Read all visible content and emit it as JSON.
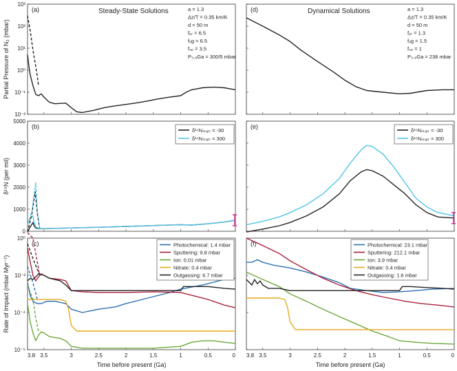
{
  "figure": {
    "xlabel": "Time before present (Ga)",
    "x_ticks": [
      "3.8",
      "3.5",
      "3",
      "2.5",
      "2",
      "1.5",
      "1",
      "0.5",
      "0"
    ],
    "xlim": [
      3.8,
      0
    ]
  },
  "colors": {
    "black": "#222222",
    "blue": "#2a6fb0",
    "red": "#a8213a",
    "green": "#6aa83a",
    "yellow": "#e8a81e",
    "cyan": "#4fc3e6",
    "magenta": "#d4229a"
  },
  "panels": {
    "a": {
      "label": "(a)",
      "title": "Steady-State Solutions",
      "ylabel": "Partial Pressure of N₂ (mbar)",
      "y_ticks": [
        "10³",
        "10²",
        "10¹",
        "10⁰",
        "10⁻¹",
        "10⁻²"
      ],
      "params": [
        "a = 1.3",
        "Δz/T = 0.35 km/K",
        "d    = 50 m",
        "fₚᵣ = 6.5",
        "fₒg = 6.5",
        "fₛₚ = 3.5",
        "P₃.₈Ga = 300/5 mbar"
      ]
    },
    "b": {
      "label": "(b)",
      "ylabel": "δ¹⁵N (per mil)",
      "y_ticks": [
        "5000",
        "4000",
        "3000",
        "2000",
        "1000",
        "0"
      ],
      "legend": [
        "δ¹⁵Nₛₜₐᵣₜ = -30",
        "δ¹⁵Nₛₜₐᵣₜ = 300"
      ]
    },
    "c": {
      "label": "(c)",
      "ylabel": "Rate of Impact (mbar Myr⁻¹)",
      "y_ticks": [
        "10⁰",
        "10⁻²",
        "10⁻⁴",
        "10⁻⁶"
      ],
      "legend": [
        "Photochemical: 1.4 mbar",
        "Sputtering: 9.8 mbar",
        "Ion: 0.01 mbar",
        "Nitrate: 0.4 mbar",
        "Outgassing: 6.7 mbar"
      ]
    },
    "d": {
      "label": "(d)",
      "title": "Dynamical Solutions",
      "params": [
        "a = 1.3",
        "Δz/T = 0.35 km/K",
        "d    = 50 m",
        "fₚᵣ = 1.3",
        "fₒg = 1.5",
        "fₛₚ = 1",
        "P₃.₈Ga = 238 mbar"
      ]
    },
    "e": {
      "label": "(e)",
      "legend": [
        "δ¹⁵Nₛₜₐᵣₜ = -30",
        "δ¹⁵Nₛₜₐᵣₜ = 300"
      ]
    },
    "f": {
      "label": "(f)",
      "legend": [
        "Photochemical: 23.1 mbar",
        "Sputtering: 212.1 mbar",
        "Ion: 3.9 mbar",
        "Nitrate: 0.4 mbar",
        "Outgassing: 1.6 mbar"
      ]
    }
  },
  "chart_data": [
    {
      "id": "a",
      "type": "line",
      "y_scale": "log",
      "ylim": [
        0.01,
        1000
      ],
      "series": [
        {
          "style": "dashed",
          "color": "black",
          "x": [
            3.8,
            3.75,
            3.7,
            3.65,
            3.62,
            3.6
          ],
          "y": [
            300,
            60,
            8,
            1.5,
            0.5,
            0.2
          ]
        },
        {
          "style": "solid",
          "color": "black",
          "x": [
            3.8,
            3.77,
            3.75,
            3.7,
            3.65,
            3.6,
            3.55,
            3.5,
            3.4,
            3.3,
            3.1,
            3.0,
            2.9,
            2.8,
            2.6,
            2.4,
            2.2,
            2.0,
            1.8,
            1.6,
            1.4,
            1.2,
            1.0,
            0.9,
            0.8,
            0.6,
            0.4,
            0.2,
            0.0
          ],
          "y": [
            5,
            1.2,
            0.6,
            0.2,
            0.08,
            0.07,
            0.085,
            0.06,
            0.035,
            0.03,
            0.032,
            0.02,
            0.013,
            0.012,
            0.015,
            0.02,
            0.024,
            0.028,
            0.033,
            0.04,
            0.05,
            0.06,
            0.07,
            0.1,
            0.13,
            0.16,
            0.17,
            0.16,
            0.13
          ]
        }
      ]
    },
    {
      "id": "b",
      "type": "line",
      "ylim": [
        0,
        5000
      ],
      "series": [
        {
          "name": "δ¹⁵Nₛₜₐᵣₜ = -30",
          "style": "solid",
          "color": "black",
          "x": [
            3.8,
            3.75,
            3.7,
            3.68,
            3.65,
            3.6,
            3.5,
            3.3,
            3.0,
            2.5,
            2.0,
            1.5,
            1.0,
            0.8,
            0.5,
            0.2,
            0.0
          ],
          "y": [
            -30,
            200,
            400,
            250,
            150,
            120,
            120,
            130,
            150,
            180,
            220,
            260,
            300,
            280,
            340,
            420,
            500
          ]
        },
        {
          "name": "δ¹⁵Nₛₜₐᵣₜ = 300",
          "style": "solid",
          "color": "cyan",
          "x": [
            3.8,
            3.75,
            3.7,
            3.68,
            3.65,
            3.6,
            3.5,
            3.3,
            3.0,
            2.5,
            2.0,
            1.5,
            1.0,
            0.8,
            0.5,
            0.2,
            0.0
          ],
          "y": [
            300,
            600,
            700,
            400,
            200,
            130,
            120,
            130,
            150,
            180,
            220,
            260,
            300,
            280,
            340,
            420,
            500
          ]
        },
        {
          "style": "dashed",
          "color": "black",
          "x": [
            3.8,
            3.72,
            3.66,
            3.62,
            3.58
          ],
          "y": [
            -30,
            800,
            1800,
            800,
            150
          ]
        },
        {
          "style": "dashed",
          "color": "cyan",
          "x": [
            3.8,
            3.72,
            3.65,
            3.62,
            3.58
          ],
          "y": [
            300,
            900,
            2200,
            900,
            150
          ]
        }
      ],
      "error_bar": {
        "x": 0.0,
        "y": 500,
        "low": 250,
        "high": 750,
        "color": "magenta"
      }
    },
    {
      "id": "c",
      "type": "line",
      "y_scale": "log",
      "ylim": [
        1e-06,
        1
      ],
      "series": [
        {
          "name": "Photochemical: 1.4 mbar",
          "color": "blue",
          "style": "solid",
          "x": [
            3.8,
            3.75,
            3.7,
            3.62,
            3.55,
            3.45,
            3.3,
            3.1,
            3.0,
            2.8,
            2.5,
            2.2,
            2.0,
            1.6,
            1.2,
            1.0,
            0.6,
            0.2,
            0.0
          ],
          "y": [
            0.004,
            0.0008,
            0.0004,
            0.0003,
            0.0003,
            0.0004,
            0.0004,
            0.0003,
            0.00015,
            0.0001,
            0.00015,
            0.0002,
            0.0003,
            0.0006,
            0.0012,
            0.0018,
            0.003,
            0.006,
            0.007
          ]
        },
        {
          "name": "Sputtering: 9.8 mbar",
          "color": "red",
          "style": "solid",
          "x": [
            3.8,
            3.75,
            3.7,
            3.65,
            3.6,
            3.55,
            3.5,
            3.4,
            3.2,
            3.1,
            3.0,
            2.8,
            2.5,
            2.0,
            1.5,
            1.0,
            0.5,
            0.2,
            0.0
          ],
          "y": [
            0.3,
            0.05,
            0.01,
            0.005,
            0.008,
            0.012,
            0.01,
            0.007,
            0.006,
            0.005,
            0.0015,
            0.0013,
            0.0012,
            0.0012,
            0.0013,
            0.0012,
            0.0005,
            0.00025,
            0.00018
          ]
        },
        {
          "name": "Ion: 0.01 mbar",
          "color": "green",
          "style": "solid",
          "x": [
            3.8,
            3.75,
            3.7,
            3.65,
            3.6,
            3.55,
            3.5,
            3.4,
            3.2,
            3.1,
            3.0,
            2.8,
            2.5,
            2.0,
            1.5,
            1.0,
            0.8,
            0.6,
            0.4,
            0.2,
            0.0
          ],
          "y": [
            0.0003,
            3e-05,
            8e-06,
            3e-06,
            6e-06,
            9e-06,
            8e-06,
            5e-06,
            4e-06,
            3e-06,
            1.5e-06,
            1.2e-06,
            1.2e-06,
            1.2e-06,
            1.2e-06,
            1.5e-06,
            2.5e-06,
            3e-06,
            3e-06,
            2.5e-06,
            2.2e-06
          ]
        },
        {
          "name": "Nitrate: 0.4 mbar",
          "color": "yellow",
          "style": "solid",
          "x": [
            3.8,
            3.5,
            3.2,
            3.1,
            3.05,
            3.0,
            2.9,
            2.5,
            2.0,
            1.5,
            1.0,
            0.5,
            0.0
          ],
          "y": [
            0.0005,
            0.0005,
            0.0005,
            0.0004,
            0.00015,
            2e-05,
            1e-05,
            1e-05,
            1e-05,
            1e-05,
            1e-05,
            1e-05,
            1e-05
          ]
        },
        {
          "name": "Outgassing: 6.7 mbar",
          "color": "black",
          "style": "solid",
          "x": [
            3.8,
            3.75,
            3.7,
            3.65,
            3.6,
            3.55,
            3.5,
            3.4,
            3.2,
            3.1,
            3.0,
            2.8,
            2.5,
            2.0,
            1.5,
            1.0,
            0.95,
            0.8,
            0.5,
            0.2,
            0.0
          ],
          "y": [
            0.005,
            0.007,
            0.006,
            0.008,
            0.012,
            0.011,
            0.01,
            0.007,
            0.005,
            0.003,
            0.0015,
            0.0015,
            0.0015,
            0.0015,
            0.0015,
            0.0015,
            0.0025,
            0.0025,
            0.0025,
            0.002,
            0.0018
          ]
        },
        {
          "color": "blue",
          "style": "dashed",
          "x": [
            3.8,
            3.7,
            3.62
          ],
          "y": [
            0.03,
            0.004,
            0.0005
          ]
        },
        {
          "color": "red",
          "style": "dashed",
          "x": [
            3.8,
            3.7,
            3.62,
            3.58
          ],
          "y": [
            2.0,
            1.0,
            0.05,
            0.01
          ]
        },
        {
          "color": "green",
          "style": "dashed",
          "x": [
            3.8,
            3.7,
            3.65,
            3.6
          ],
          "y": [
            0.003,
            0.0005,
            5e-05,
            1e-05
          ]
        },
        {
          "color": "black",
          "style": "dashed",
          "x": [
            3.8,
            3.7,
            3.62,
            3.58
          ],
          "y": [
            0.5,
            0.08,
            0.02,
            0.012
          ]
        }
      ]
    },
    {
      "id": "d",
      "type": "line",
      "y_scale": "log",
      "ylim": [
        0.01,
        1000
      ],
      "series": [
        {
          "style": "solid",
          "color": "black",
          "x": [
            3.8,
            3.5,
            3.2,
            3.0,
            2.8,
            2.5,
            2.2,
            2.0,
            1.8,
            1.6,
            1.3,
            1.0,
            0.8,
            0.5,
            0.2,
            0.0
          ],
          "y": [
            238,
            100,
            40,
            20,
            8,
            2.5,
            0.8,
            0.35,
            0.18,
            0.12,
            0.1,
            0.085,
            0.09,
            0.12,
            0.13,
            0.13
          ]
        }
      ]
    },
    {
      "id": "e",
      "type": "line",
      "ylim": [
        0,
        5000
      ],
      "series": [
        {
          "name": "δ¹⁵Nₛₜₐᵣₜ = -30",
          "style": "solid",
          "color": "black",
          "x": [
            3.8,
            3.5,
            3.2,
            3.0,
            2.7,
            2.4,
            2.1,
            1.9,
            1.7,
            1.6,
            1.5,
            1.3,
            1.1,
            0.9,
            0.7,
            0.5,
            0.3,
            0.0
          ],
          "y": [
            -30,
            100,
            250,
            400,
            700,
            1100,
            1700,
            2300,
            2700,
            2800,
            2750,
            2500,
            2100,
            1700,
            1200,
            850,
            650,
            600
          ]
        },
        {
          "name": "δ¹⁵Nₛₜₐᵣₜ = 300",
          "style": "solid",
          "color": "cyan",
          "x": [
            3.8,
            3.5,
            3.2,
            3.0,
            2.7,
            2.4,
            2.1,
            1.9,
            1.7,
            1.6,
            1.5,
            1.3,
            1.1,
            0.9,
            0.7,
            0.5,
            0.3,
            0.0
          ],
          "y": [
            300,
            450,
            650,
            850,
            1200,
            1700,
            2400,
            3100,
            3700,
            3900,
            3850,
            3500,
            2900,
            2200,
            1500,
            1100,
            850,
            700
          ]
        }
      ],
      "error_bar": {
        "x": 0.0,
        "y": 600,
        "low": 350,
        "high": 850,
        "color": "magenta"
      }
    },
    {
      "id": "f",
      "type": "line",
      "y_scale": "log",
      "ylim": [
        1e-06,
        1
      ],
      "series": [
        {
          "name": "Photochemical: 23.1 mbar",
          "color": "blue",
          "x": [
            3.8,
            3.7,
            3.6,
            3.5,
            3.3,
            3.0,
            2.7,
            2.4,
            2.1,
            1.9,
            1.6,
            1.3,
            1.0,
            0.7,
            0.4,
            0.0
          ],
          "y": [
            0.05,
            0.05,
            0.07,
            0.05,
            0.035,
            0.025,
            0.015,
            0.008,
            0.004,
            0.002,
            0.0015,
            0.0012,
            0.0013,
            0.0015,
            0.0018,
            0.002
          ]
        },
        {
          "name": "Sputtering: 212.1 mbar",
          "color": "red",
          "x": [
            3.8,
            3.5,
            3.2,
            3.0,
            2.7,
            2.4,
            2.1,
            1.8,
            1.5,
            1.2,
            0.9,
            0.6,
            0.3,
            0.0
          ],
          "y": [
            1.0,
            0.4,
            0.15,
            0.06,
            0.02,
            0.007,
            0.003,
            0.0015,
            0.0009,
            0.0006,
            0.0004,
            0.0003,
            0.00025,
            0.0002
          ]
        },
        {
          "name": "Ion: 3.9 mbar",
          "color": "green",
          "x": [
            3.8,
            3.5,
            3.2,
            3.0,
            2.7,
            2.4,
            2.1,
            1.8,
            1.5,
            1.2,
            1.0,
            0.7,
            0.4,
            0.0
          ],
          "y": [
            0.015,
            0.006,
            0.0025,
            0.001,
            0.0004,
            0.00015,
            6e-05,
            2.5e-05,
            1e-05,
            5e-06,
            3e-06,
            2.5e-06,
            2.2e-06,
            2e-06
          ]
        },
        {
          "name": "Nitrate: 0.4 mbar",
          "color": "yellow",
          "x": [
            3.8,
            3.5,
            3.2,
            3.1,
            3.05,
            3.0,
            2.9,
            2.5,
            2.0,
            1.5,
            1.0,
            0.5,
            0.0
          ],
          "y": [
            0.0006,
            0.0006,
            0.0006,
            0.0005,
            0.0002,
            3e-05,
            1.2e-05,
            1.2e-05,
            1.2e-05,
            1.2e-05,
            1.2e-05,
            1.2e-05,
            1.2e-05
          ]
        },
        {
          "name": "Outgassing: 1.6 mbar",
          "color": "black",
          "x": [
            3.8,
            3.7,
            3.65,
            3.6,
            3.55,
            3.5,
            3.4,
            3.2,
            3.0,
            2.8,
            2.5,
            2.0,
            1.5,
            1.0,
            0.95,
            0.8,
            0.5,
            0.2,
            0.0
          ],
          "y": [
            0.006,
            0.003,
            0.006,
            0.0035,
            0.005,
            0.003,
            0.002,
            0.002,
            0.0015,
            0.0015,
            0.0015,
            0.0015,
            0.0015,
            0.0015,
            0.0025,
            0.0025,
            0.0022,
            0.002,
            0.0018
          ]
        }
      ]
    }
  ]
}
